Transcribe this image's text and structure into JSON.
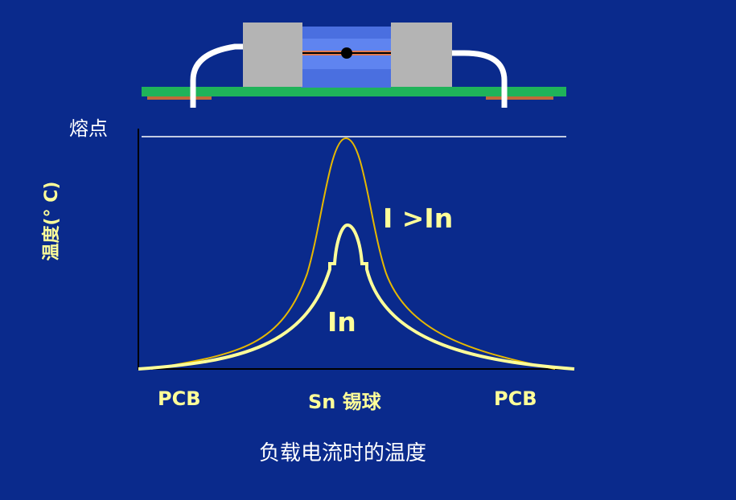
{
  "labels": {
    "melting_point": "熔点",
    "y_axis": "温度(° C)",
    "curve_high": "I >In",
    "curve_rated": "In",
    "x_left": "PCB",
    "x_middle": "Sn 锡球",
    "x_right": "PCB",
    "caption": "负载电流时的温度"
  },
  "colors": {
    "background": "#0a2a8c",
    "text_yellow": "#ffff99",
    "curve_high": "#e6b800",
    "curve_rated": "#ffff99",
    "axis": "#000000",
    "melt_line": "#ffffff",
    "pcb_board": "#1fb35a",
    "end_cap": "#b4b4b4",
    "fuse_body": "#4a6fe0",
    "fuse_wire": "#e07a50",
    "tin_ball": "#000000",
    "lead": "#ffffff"
  }
}
